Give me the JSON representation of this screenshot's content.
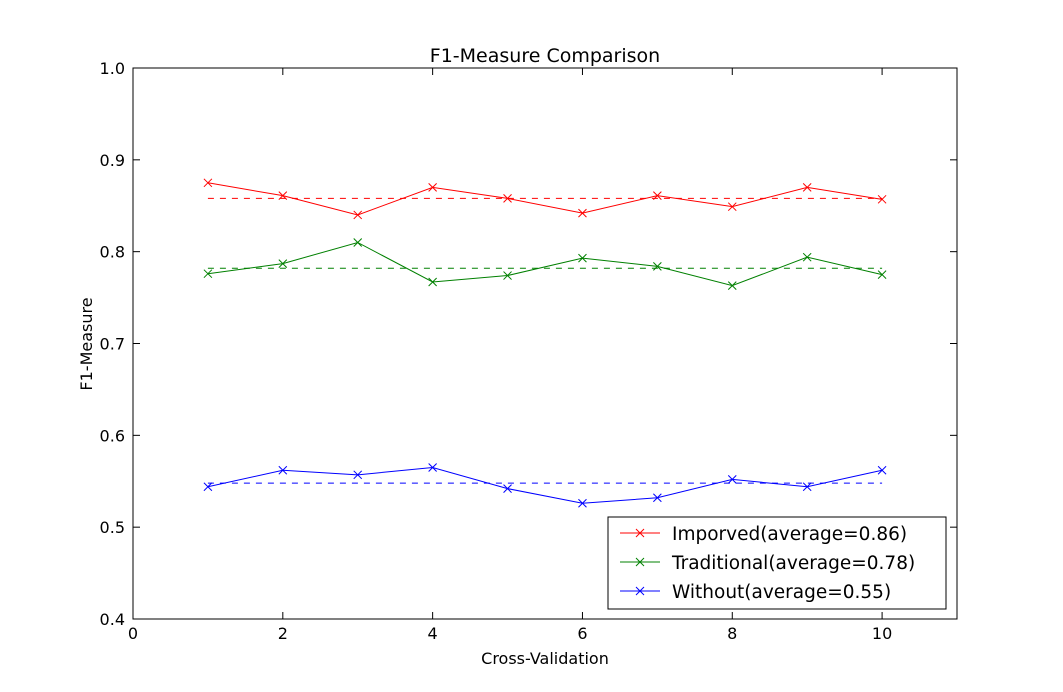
{
  "chart_data": {
    "type": "line",
    "title": "F1-Measure Comparison",
    "xlabel": "Cross-Validation",
    "ylabel": "F1-Measure",
    "xlim": [
      0,
      11
    ],
    "ylim": [
      0.4,
      1.0
    ],
    "xticks": [
      0,
      2,
      4,
      6,
      8,
      10
    ],
    "xtick_labels": [
      "0",
      "2",
      "4",
      "6",
      "8",
      "10"
    ],
    "yticks": [
      0.4,
      0.5,
      0.6,
      0.7,
      0.8,
      0.9,
      1.0
    ],
    "ytick_labels": [
      "0.4",
      "0.5",
      "0.6",
      "0.7",
      "0.8",
      "0.9",
      "1.0"
    ],
    "grid": false,
    "legend_position": "lower-right",
    "x": [
      1,
      2,
      3,
      4,
      5,
      6,
      7,
      8,
      9,
      10
    ],
    "series": [
      {
        "name": "Imporved(average=0.86)",
        "color": "#ff0000",
        "marker": "x",
        "values": [
          0.875,
          0.861,
          0.84,
          0.87,
          0.858,
          0.842,
          0.861,
          0.849,
          0.87,
          0.857
        ],
        "average": 0.858
      },
      {
        "name": "Traditional(average=0.78)",
        "color": "#008000",
        "marker": "x",
        "values": [
          0.776,
          0.787,
          0.81,
          0.767,
          0.774,
          0.793,
          0.784,
          0.763,
          0.794,
          0.775
        ],
        "average": 0.782
      },
      {
        "name": "Without(average=0.55)",
        "color": "#0000ff",
        "marker": "x",
        "values": [
          0.544,
          0.562,
          0.557,
          0.565,
          0.542,
          0.526,
          0.532,
          0.552,
          0.544,
          0.562
        ],
        "average": 0.548
      }
    ]
  }
}
